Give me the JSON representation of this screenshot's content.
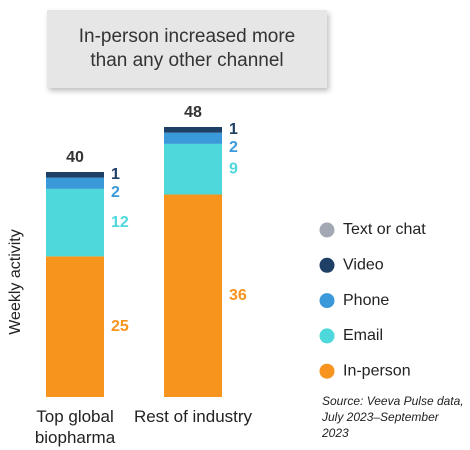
{
  "chart_data": {
    "type": "stacked-bar",
    "title": "In-person increased more than any other channel",
    "y_label": "Weekly activity",
    "categories": [
      "Top global biopharma",
      "Rest of industry"
    ],
    "totals": [
      40,
      48
    ],
    "series": [
      {
        "name": "In-person",
        "color": "#f7941d",
        "values": [
          25,
          36
        ]
      },
      {
        "name": "Email",
        "color": "#4fd8dc",
        "values": [
          12,
          9
        ]
      },
      {
        "name": "Phone",
        "color": "#3a9ad9",
        "values": [
          2,
          2
        ]
      },
      {
        "name": "Video",
        "color": "#1e3f66",
        "values": [
          1,
          1
        ]
      },
      {
        "name": "Text or chat",
        "color": "#a2a9b4",
        "values": [
          0,
          0
        ]
      }
    ],
    "source": "Source: Veeva Pulse data, July 2023–September 2023"
  }
}
